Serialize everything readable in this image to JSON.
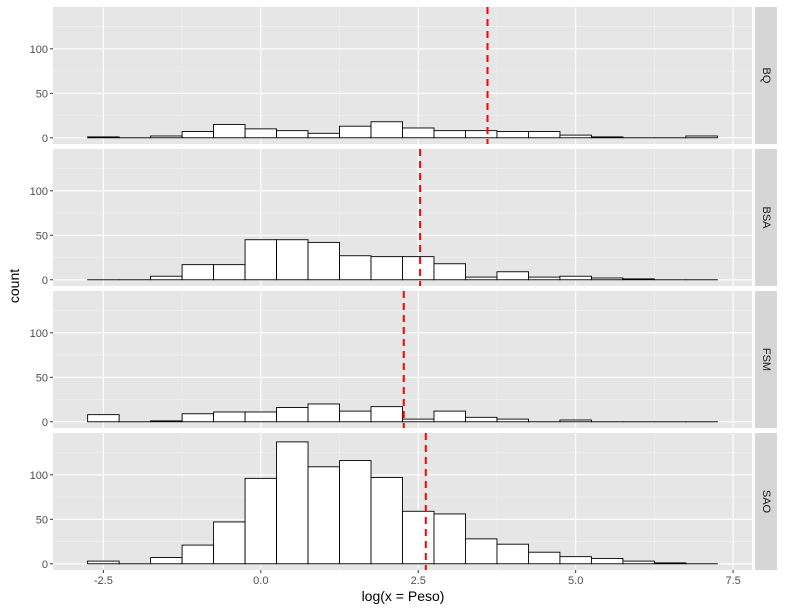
{
  "chart_data": {
    "type": "histogram",
    "xlabel": "log(x = Peso)",
    "ylabel": "count",
    "x_ticks": [
      -2.5,
      0.0,
      2.5,
      5.0,
      7.5
    ],
    "x_tick_labels": [
      "-2.5",
      "0.0",
      "2.5",
      "5.0",
      "7.5"
    ],
    "xlim": [
      -3.3,
      7.8
    ],
    "ylim": [
      -7,
      147
    ],
    "y_ticks": [
      0,
      50,
      100
    ],
    "y_tick_labels": [
      "0",
      "50",
      "100"
    ],
    "bin_edges": [
      -2.75,
      -2.25,
      -1.75,
      -1.25,
      -0.75,
      -0.25,
      0.25,
      0.75,
      1.25,
      1.75,
      2.25,
      2.75,
      3.25,
      3.75,
      4.25,
      4.75,
      5.25,
      5.75,
      6.25,
      6.75,
      7.25
    ],
    "grid": true,
    "colors": {
      "panel_background": "#e6e6e6",
      "grid_major": "#ffffff",
      "grid_minor": "#f2f2f2",
      "bar_fill": "#ffffff",
      "bar_stroke": "#000000",
      "ref_line": "#ff0000",
      "strip_background": "#d6d6d6"
    },
    "facets": [
      {
        "name": "BQ",
        "counts": [
          1,
          0,
          2,
          7,
          15,
          10,
          8,
          5,
          13,
          18,
          11,
          8,
          8,
          7,
          7,
          3,
          1,
          0,
          0,
          2
        ],
        "ref_line": 3.6
      },
      {
        "name": "BSA",
        "counts": [
          0,
          0,
          4,
          17,
          17,
          45,
          45,
          42,
          27,
          26,
          26,
          18,
          3,
          9,
          3,
          4,
          2,
          1,
          0,
          0
        ],
        "ref_line": 2.53
      },
      {
        "name": "FSM",
        "counts": [
          8,
          0,
          1,
          9,
          11,
          11,
          16,
          20,
          12,
          17,
          3,
          12,
          5,
          3,
          0,
          2,
          0,
          0,
          0,
          0
        ],
        "ref_line": 2.27
      },
      {
        "name": "SAO",
        "counts": [
          3,
          0,
          7,
          21,
          47,
          96,
          137,
          109,
          116,
          97,
          59,
          56,
          28,
          22,
          13,
          8,
          6,
          3,
          1,
          0
        ],
        "ref_line": 2.62
      }
    ]
  }
}
